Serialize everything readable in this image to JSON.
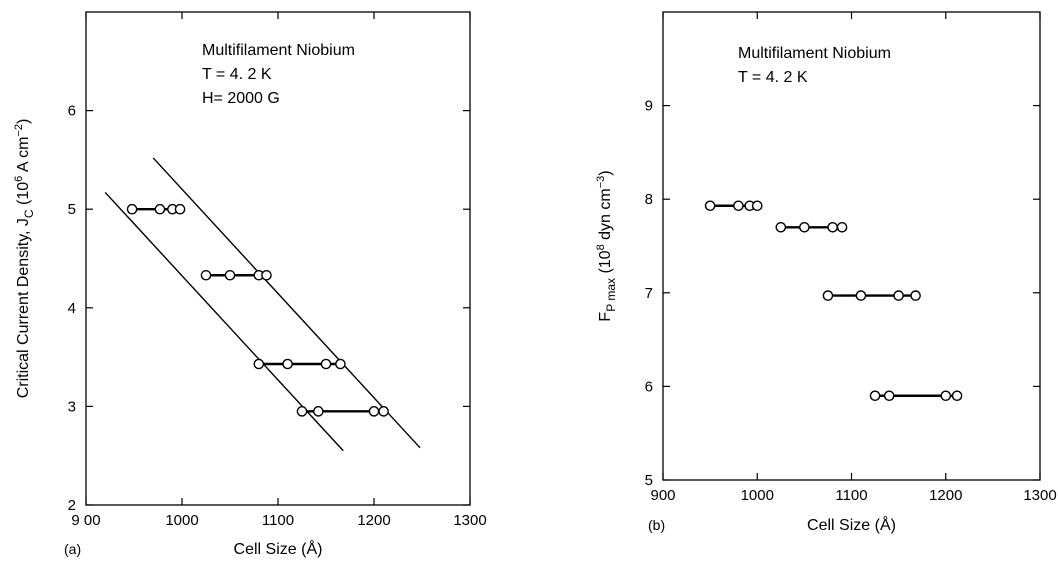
{
  "chart_data": [
    {
      "type": "scatter",
      "panel_label": "(a)",
      "xlabel": "Cell Size (Å)",
      "ylabel": "Critical Current Density, J",
      "ylabel_sub": "C",
      "ylabel_units": " (10",
      "ylabel_units_sup": "6",
      "ylabel_units_tail": " A cm",
      "ylabel_units_sup2": "−2",
      "ylabel_close": ")",
      "xlim": [
        900,
        1300
      ],
      "ylim": [
        2,
        7
      ],
      "xticks": [
        900,
        1000,
        1100,
        1200,
        1300
      ],
      "xtick_labels": [
        "9 00",
        "1000",
        "1100",
        "1200",
        "1300"
      ],
      "yticks": [
        2,
        3,
        4,
        5,
        6
      ],
      "ytick_labels": [
        "2",
        "3",
        "4",
        "5",
        "6"
      ],
      "annotation": [
        "Multifilament Niobium",
        "T = 4. 2  K",
        "H= 2000 G"
      ],
      "grid": false,
      "legend": "none",
      "series": [
        {
          "x": [
            948,
            977,
            990,
            998
          ],
          "y": [
            5.0,
            5.0,
            5.0,
            5.0
          ]
        },
        {
          "x": [
            1025,
            1050,
            1080,
            1088
          ],
          "y": [
            4.33,
            4.33,
            4.33,
            4.33
          ]
        },
        {
          "x": [
            1080,
            1110,
            1150,
            1165
          ],
          "y": [
            3.43,
            3.43,
            3.43,
            3.43
          ]
        },
        {
          "x": [
            1125,
            1142,
            1200,
            1210
          ],
          "y": [
            2.95,
            2.95,
            2.95,
            2.95
          ]
        }
      ],
      "trend_lines": [
        {
          "x": [
            920,
            1168
          ],
          "y": [
            5.17,
            2.55
          ]
        },
        {
          "x": [
            970,
            1248
          ],
          "y": [
            5.52,
            2.58
          ]
        }
      ]
    },
    {
      "type": "scatter",
      "panel_label": "(b)",
      "xlabel": "Cell Size (Å)",
      "ylabel": "F",
      "ylabel_sub": "P max",
      "ylabel_units": " (10",
      "ylabel_units_sup": "8",
      "ylabel_units_tail": " dyn cm",
      "ylabel_units_sup2": "−3",
      "ylabel_close": ")",
      "xlim": [
        900,
        1300
      ],
      "ylim": [
        5,
        10
      ],
      "xticks": [
        900,
        1000,
        1100,
        1200,
        1300
      ],
      "xtick_labels": [
        "900",
        "1000",
        "1100",
        "1200",
        "1300"
      ],
      "yticks": [
        5,
        6,
        7,
        8,
        9
      ],
      "ytick_labels": [
        "5",
        "6",
        "7",
        "8",
        "9"
      ],
      "annotation": [
        "Multifilament Niobium",
        "T = 4. 2  K"
      ],
      "grid": false,
      "legend": "none",
      "series": [
        {
          "x": [
            950,
            980,
            992,
            1000
          ],
          "y": [
            7.93,
            7.93,
            7.93,
            7.93
          ]
        },
        {
          "x": [
            1025,
            1050,
            1080,
            1090
          ],
          "y": [
            7.7,
            7.7,
            7.7,
            7.7
          ]
        },
        {
          "x": [
            1075,
            1110,
            1150,
            1168
          ],
          "y": [
            6.97,
            6.97,
            6.97,
            6.97
          ]
        },
        {
          "x": [
            1125,
            1140,
            1200,
            1212
          ],
          "y": [
            5.9,
            5.9,
            5.9,
            5.9
          ]
        }
      ],
      "trend_lines": []
    }
  ]
}
